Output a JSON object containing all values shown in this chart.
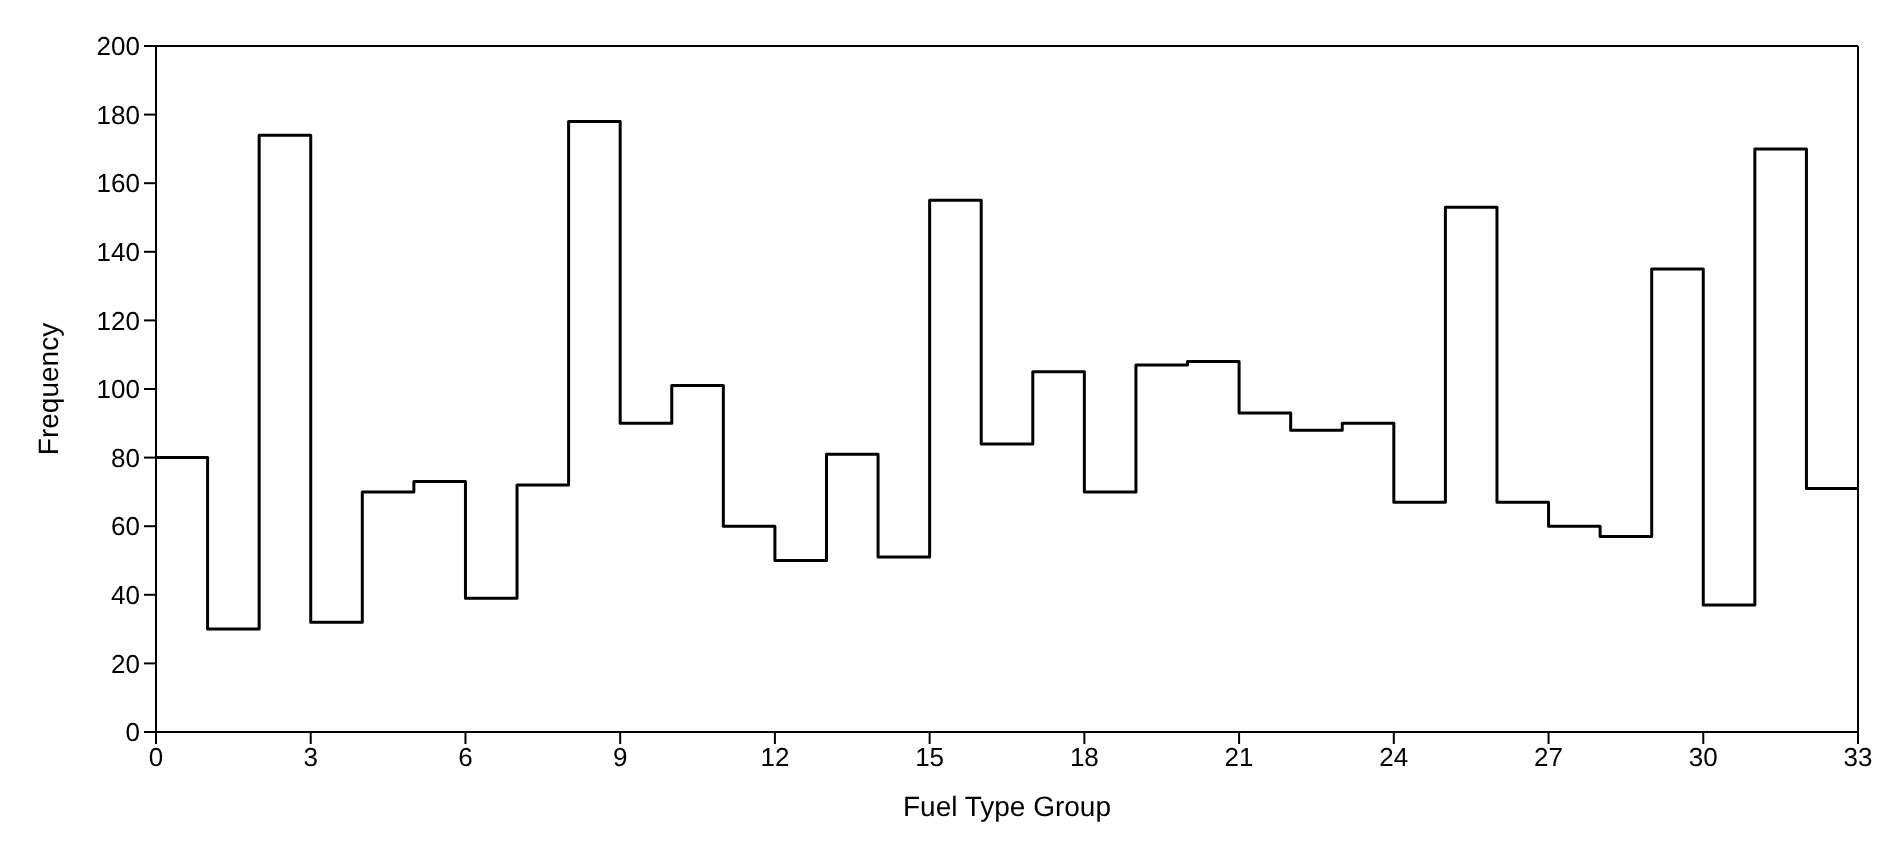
{
  "chart_data": {
    "type": "histogram",
    "xlabel": "Fuel Type Group",
    "ylabel": "Frequency",
    "bins": [
      0,
      1,
      2,
      3,
      4,
      5,
      6,
      7,
      8,
      9,
      10,
      11,
      12,
      13,
      14,
      15,
      16,
      17,
      18,
      19,
      20,
      21,
      22,
      23,
      24,
      25,
      26,
      27,
      28,
      29,
      30,
      31,
      32,
      33
    ],
    "values": [
      80,
      30,
      174,
      32,
      70,
      73,
      39,
      72,
      178,
      90,
      101,
      60,
      50,
      81,
      51,
      155,
      84,
      105,
      70,
      107,
      108,
      93,
      88,
      90,
      67,
      153,
      67,
      60,
      57,
      135,
      37,
      170,
      71
    ],
    "color": "#000000",
    "xlim": [
      0,
      33
    ],
    "xticks": [
      0,
      3,
      6,
      9,
      12,
      15,
      18,
      21,
      24,
      27,
      30,
      33
    ],
    "ylim": [
      0,
      200
    ],
    "yticks": [
      0,
      20,
      40,
      60,
      80,
      100,
      120,
      140,
      160,
      180,
      200
    ],
    "grid": false,
    "legend": false
  }
}
